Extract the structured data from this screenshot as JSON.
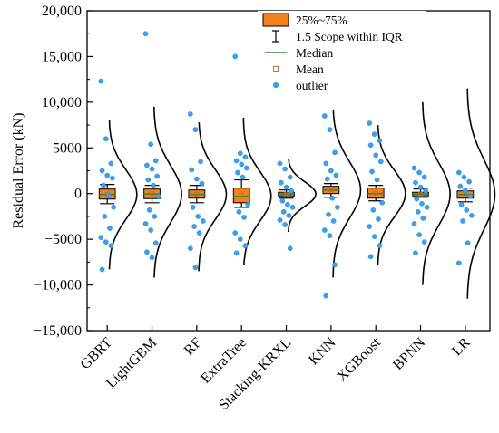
{
  "chart_data": {
    "type": "box",
    "ylabel": "Residual Error (kN)",
    "xlabel": "",
    "title": "",
    "ylim": [
      -15000,
      20000
    ],
    "yticks": [
      -15000,
      -10000,
      -5000,
      0,
      5000,
      10000,
      15000,
      20000
    ],
    "ytick_labels": [
      "−15,000",
      "−10,000",
      "−5000",
      "0",
      "5000",
      "10,000",
      "15,000",
      "20,000"
    ],
    "grid": false,
    "legend_position": "top-center",
    "legend": [
      {
        "key": "box",
        "label": "25%~75%"
      },
      {
        "key": "whisker",
        "label": "1.5 Scope within IQR"
      },
      {
        "key": "median",
        "label": "Median"
      },
      {
        "key": "mean",
        "label": "Mean"
      },
      {
        "key": "outlier",
        "label": "outlier"
      }
    ],
    "colors": {
      "box": "#f47f1f",
      "median": "#2e8b2e",
      "mean": "#c8642a",
      "outlier": "#3aa0f0"
    },
    "categories": [
      "GBRT",
      "LightGBM",
      "RF",
      "ExtraTree",
      "Stacking-KRXL",
      "KNN",
      "XGBoost",
      "BPNN",
      "LR"
    ],
    "series": [
      {
        "category": "GBRT",
        "q1": -600,
        "median": -100,
        "q3": 500,
        "whisker_low": -1100,
        "whisker_high": 1000,
        "mean": -50,
        "outliers": [
          12300,
          6000,
          3300,
          2500,
          2000,
          1700,
          900,
          -200,
          -1500,
          -2500,
          -3800,
          -4800,
          -5300,
          -5700,
          -8300
        ],
        "density_range": [
          -8300,
          8000
        ]
      },
      {
        "category": "LightGBM",
        "q1": -550,
        "median": -50,
        "q3": 500,
        "whisker_low": -1000,
        "whisker_high": 900,
        "mean": 0,
        "outliers": [
          17500,
          5400,
          3600,
          3100,
          2700,
          1900,
          1500,
          900,
          -300,
          -1800,
          -2500,
          -3300,
          -4000,
          -5400,
          -6400,
          -7000
        ],
        "density_range": [
          -9200,
          9500
        ]
      },
      {
        "category": "RF",
        "q1": -500,
        "median": -100,
        "q3": 400,
        "whisker_low": -1000,
        "whisker_high": 900,
        "mean": -50,
        "outliers": [
          8700,
          7000,
          3500,
          2600,
          1600,
          1100,
          -1500,
          -2500,
          -3000,
          -3600,
          -4300,
          -6000,
          -8100
        ],
        "density_range": [
          -8500,
          7800
        ]
      },
      {
        "category": "ExtraTree",
        "q1": -1000,
        "median": -300,
        "q3": 600,
        "whisker_low": -1500,
        "whisker_high": 1500,
        "mean": -150,
        "outliers": [
          15000,
          4400,
          4000,
          3600,
          3200,
          2800,
          2300,
          1800,
          -1200,
          -2000,
          -2600,
          -4300,
          -5000,
          -5700,
          -6500
        ],
        "density_range": [
          -7800,
          8300
        ]
      },
      {
        "category": "Stacking-KRXL",
        "q1": -250,
        "median": -50,
        "q3": 150,
        "whisker_low": -500,
        "whisker_high": 400,
        "mean": -30,
        "outliers": [
          3300,
          2700,
          1800,
          1200,
          700,
          300,
          -800,
          -1200,
          -1500,
          -2000,
          -2400,
          -2900,
          -3400,
          -6000
        ],
        "density_range": [
          -4200,
          3800
        ]
      },
      {
        "category": "KNN",
        "q1": 0,
        "median": 400,
        "q3": 800,
        "whisker_low": -400,
        "whisker_high": 1100,
        "mean": 400,
        "outliers": [
          8500,
          7000,
          4500,
          3300,
          2500,
          2000,
          1600,
          -500,
          -1500,
          -2300,
          -3000,
          -4000,
          -4600,
          -7800,
          -11200
        ],
        "density_range": [
          -9200,
          9200
        ]
      },
      {
        "category": "XGBoost",
        "q1": -500,
        "median": 0,
        "q3": 600,
        "whisker_low": -800,
        "whisker_high": 900,
        "mean": 50,
        "outliers": [
          7700,
          6500,
          5800,
          5300,
          4200,
          3500,
          2400,
          1500,
          -1000,
          -1800,
          -2800,
          -3600,
          -4700,
          -5700,
          -6900
        ],
        "density_range": [
          -7800,
          7500
        ]
      },
      {
        "category": "BPNN",
        "q1": -250,
        "median": -50,
        "q3": 150,
        "whisker_low": -400,
        "whisker_high": 500,
        "mean": -30,
        "outliers": [
          2800,
          2300,
          1800,
          1200,
          700,
          300,
          -600,
          -1100,
          -1500,
          -2000,
          -2700,
          -3300,
          -4500,
          -5300,
          -6500
        ],
        "density_range": [
          -10000,
          10000
        ]
      },
      {
        "category": "LR",
        "q1": -500,
        "median": -100,
        "q3": 300,
        "whisker_low": -900,
        "whisker_high": 600,
        "mean": -50,
        "outliers": [
          2300,
          1800,
          1300,
          800,
          300,
          -300,
          -1200,
          -1800,
          -2400,
          -3000,
          -5400,
          -7600
        ],
        "density_range": [
          -11500,
          11500
        ]
      }
    ]
  }
}
